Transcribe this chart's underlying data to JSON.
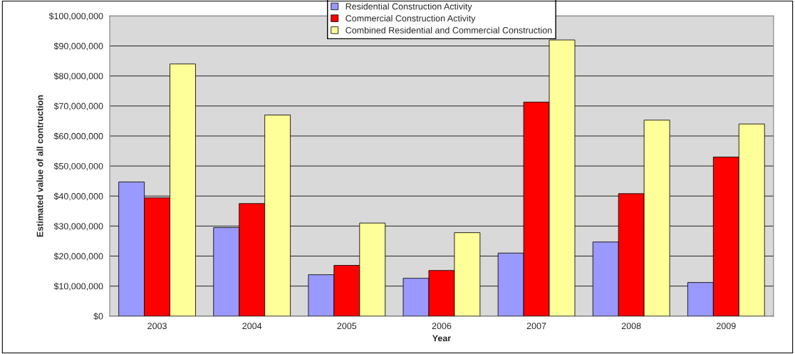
{
  "chart_data": {
    "type": "bar",
    "xlabel": "Year",
    "ylabel": "Estimated value of all contruction",
    "categories": [
      "2003",
      "2004",
      "2005",
      "2006",
      "2007",
      "2008",
      "2009"
    ],
    "series": [
      {
        "name": "Residential Construction Activity",
        "color": "#9999ff",
        "values": [
          44700000,
          29500000,
          13800000,
          12600000,
          21000000,
          24700000,
          11200000
        ]
      },
      {
        "name": "Commercial Construction Activity",
        "color": "#ff0000",
        "values": [
          39400000,
          37500000,
          16900000,
          15200000,
          71300000,
          40800000,
          53000000
        ]
      },
      {
        "name": "Combined Residential and Commercial Construction",
        "color": "#ffff99",
        "values": [
          84000000,
          67000000,
          31000000,
          27800000,
          92000000,
          65300000,
          64000000
        ]
      }
    ],
    "ylim": [
      0,
      100000000
    ],
    "yticks": [
      {
        "value": 0,
        "label": "$0"
      },
      {
        "value": 10000000,
        "label": "$10,000,000"
      },
      {
        "value": 20000000,
        "label": "$20,000,000"
      },
      {
        "value": 30000000,
        "label": "$30,000,000"
      },
      {
        "value": 40000000,
        "label": "$40,000,000"
      },
      {
        "value": 50000000,
        "label": "$50,000,000"
      },
      {
        "value": 60000000,
        "label": "$60,000,000"
      },
      {
        "value": 70000000,
        "label": "$70,000,000"
      },
      {
        "value": 80000000,
        "label": "$80,000,000"
      },
      {
        "value": 90000000,
        "label": "$90,000,000"
      },
      {
        "value": 100000000,
        "label": "$100,000,000"
      }
    ],
    "grid": "y",
    "legend": "top"
  }
}
